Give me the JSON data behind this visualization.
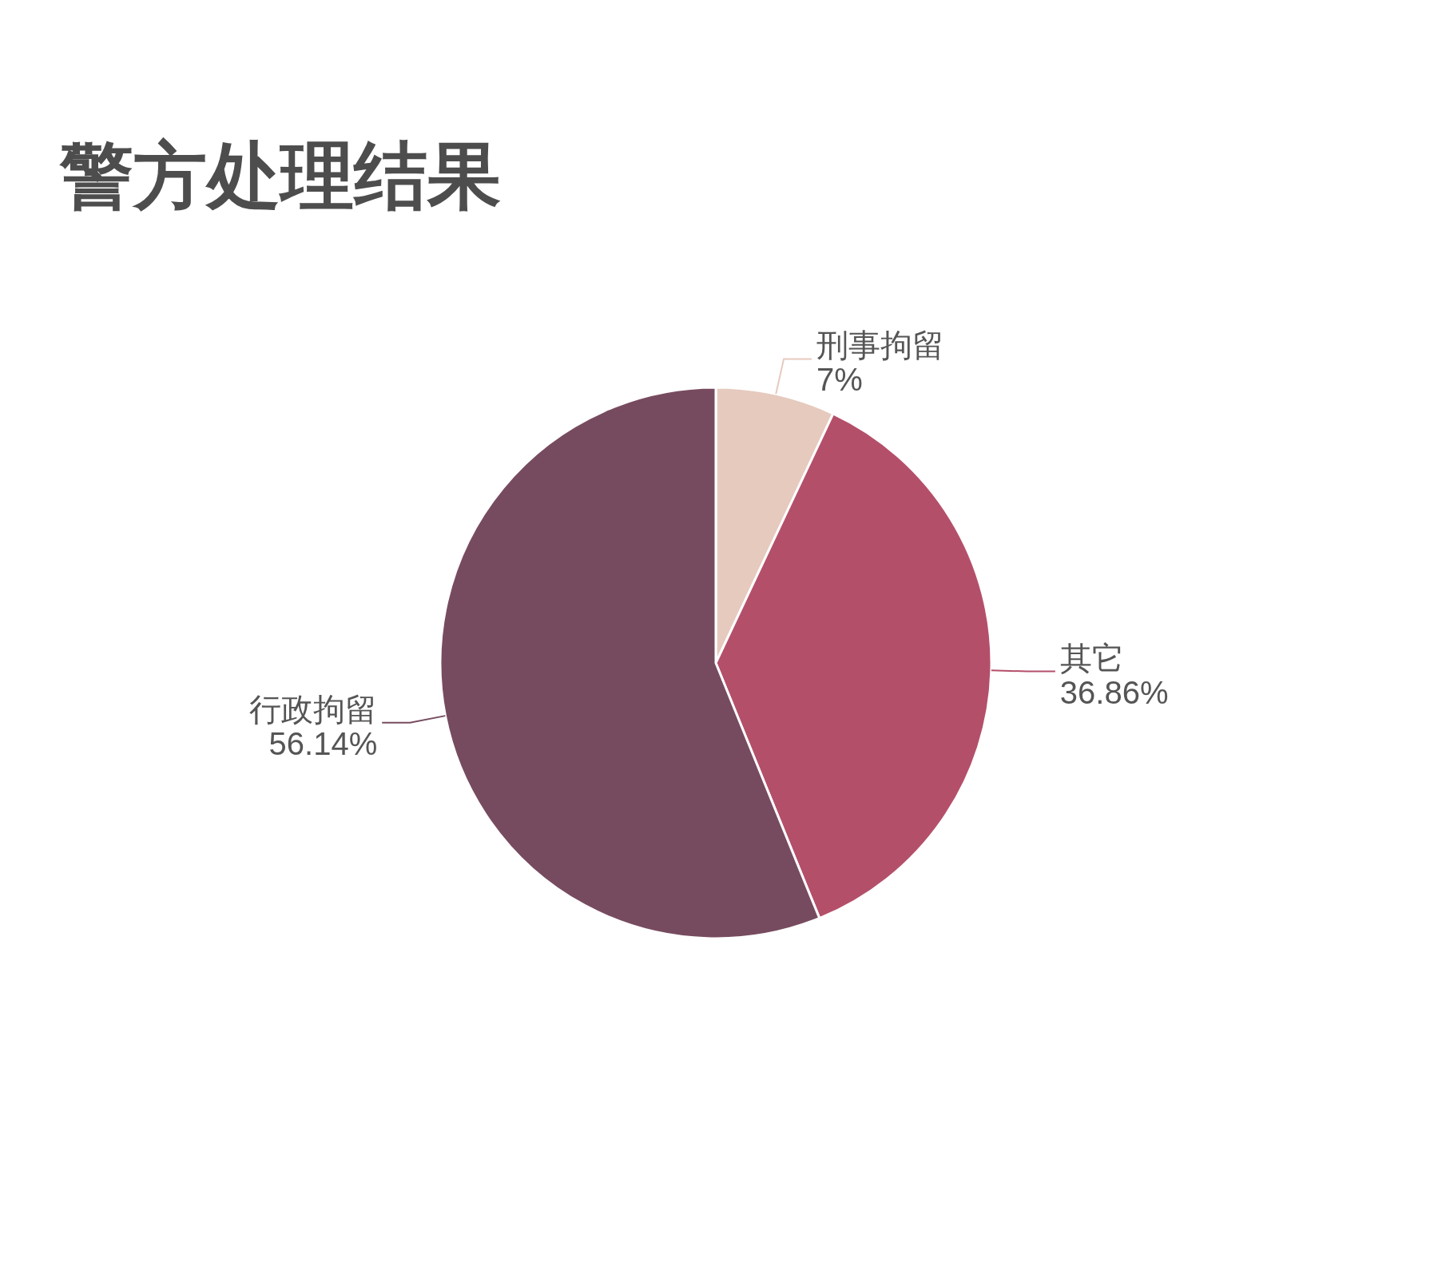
{
  "chart_data": {
    "type": "pie",
    "title": "警方处理结果",
    "categories": [
      "刑事拘留",
      "其它",
      "行政拘留"
    ],
    "values": [
      7,
      36.86,
      56.14
    ],
    "colors": [
      "#e6cabe",
      "#b44f6a",
      "#774b5f"
    ],
    "value_labels": [
      "7%",
      "36.86%",
      "56.14%"
    ]
  }
}
